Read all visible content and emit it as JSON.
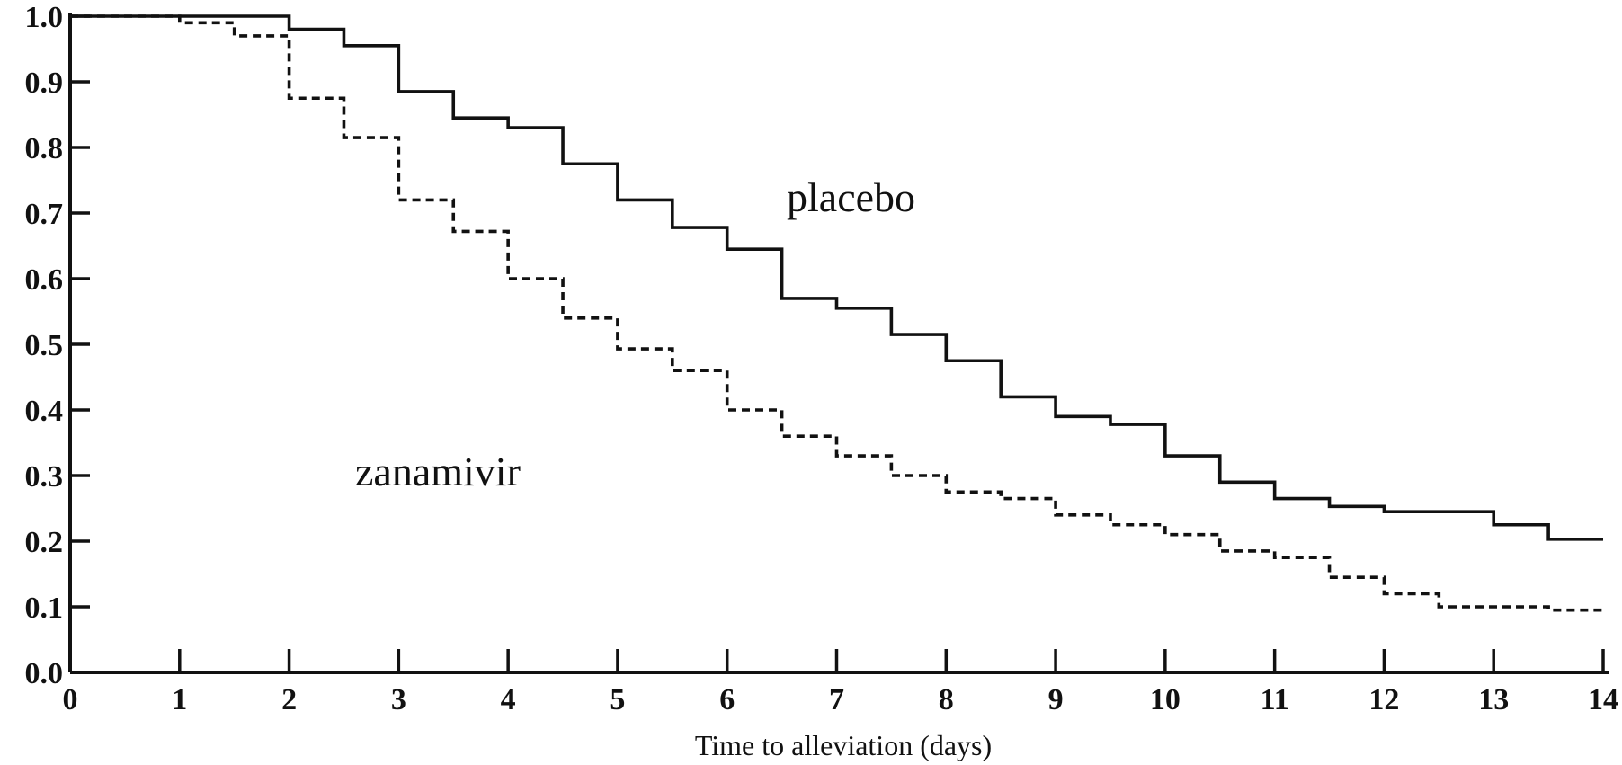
{
  "chart_data": {
    "type": "line",
    "xlabel": "Time to alleviation (days)",
    "ylabel": "",
    "xlim": [
      0,
      14
    ],
    "ylim": [
      0.0,
      1.0
    ],
    "x_ticks": [
      "0",
      "1",
      "2",
      "3",
      "4",
      "5",
      "6",
      "7",
      "8",
      "9",
      "10",
      "11",
      "12",
      "13",
      "14"
    ],
    "y_ticks": [
      "0.0",
      "0.1",
      "0.2",
      "0.3",
      "0.4",
      "0.5",
      "0.6",
      "0.7",
      "0.8",
      "0.9",
      "1.0"
    ],
    "step": true,
    "series": [
      {
        "name": "placebo",
        "line_style": "solid",
        "x": [
          0,
          2,
          2.5,
          3,
          3.5,
          4,
          4.5,
          5,
          5.5,
          6,
          6.5,
          7,
          7.5,
          8,
          8.5,
          9,
          9.5,
          10,
          10.5,
          11,
          11.5,
          12,
          12.5,
          13,
          13.5,
          14
        ],
        "values": [
          1.0,
          0.98,
          0.955,
          0.885,
          0.845,
          0.83,
          0.775,
          0.72,
          0.678,
          0.645,
          0.57,
          0.555,
          0.515,
          0.475,
          0.42,
          0.39,
          0.378,
          0.33,
          0.29,
          0.265,
          0.253,
          0.245,
          0.245,
          0.225,
          0.203,
          0.203
        ]
      },
      {
        "name": "zanamivir",
        "line_style": "dashed",
        "x": [
          0,
          1,
          1.5,
          2,
          2.5,
          3,
          3.5,
          4,
          4.5,
          5,
          5.5,
          6,
          6.5,
          7,
          7.5,
          8,
          8.5,
          9,
          9.5,
          10,
          10.5,
          11,
          11.5,
          12,
          12.5,
          13,
          13.5,
          14
        ],
        "values": [
          1.0,
          0.99,
          0.97,
          0.875,
          0.815,
          0.72,
          0.672,
          0.6,
          0.54,
          0.493,
          0.46,
          0.4,
          0.36,
          0.33,
          0.3,
          0.275,
          0.265,
          0.24,
          0.225,
          0.21,
          0.185,
          0.175,
          0.145,
          0.12,
          0.1,
          0.1,
          0.095,
          0.09
        ]
      }
    ]
  }
}
